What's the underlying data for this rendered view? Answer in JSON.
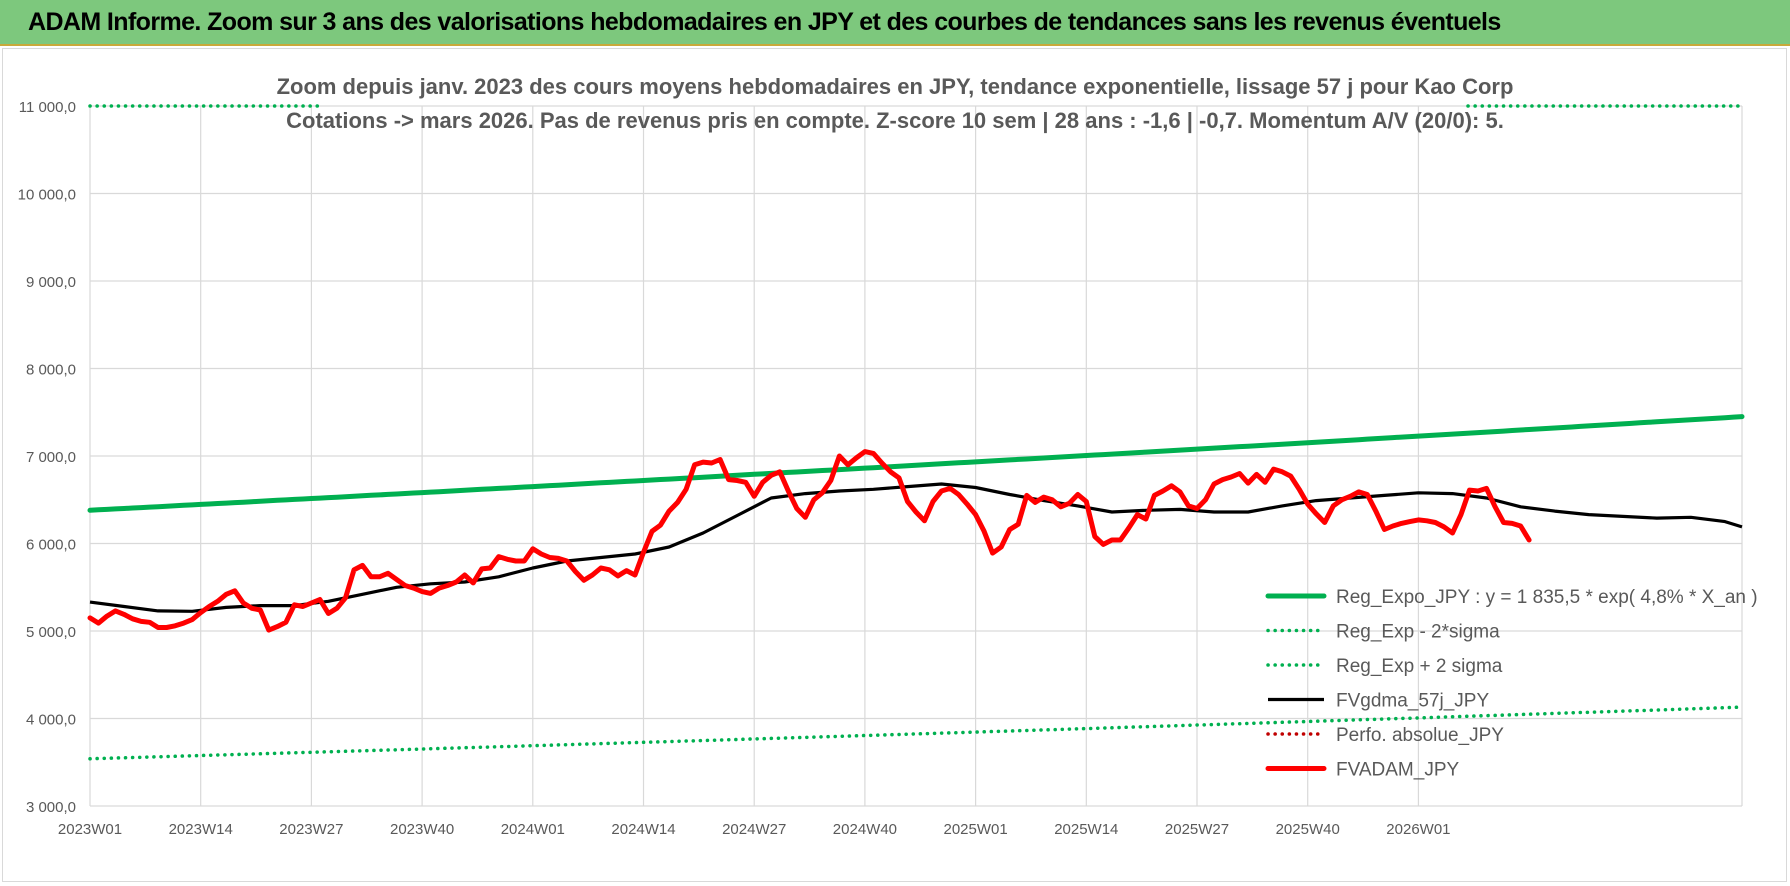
{
  "banner": {
    "title": "ADAM Informe. Zoom sur 3 ans des valorisations hebdomadaires en JPY et des courbes de tendances sans les revenus éventuels"
  },
  "colors": {
    "banner_bg": "#7dc87d",
    "green": "#00b050",
    "red": "#ff0000",
    "black": "#000000",
    "dark_red_dotted": "#c00000",
    "title_text": "#595959",
    "grid": "#d9d9d9"
  },
  "chart_data": {
    "type": "line",
    "title": "Zoom depuis janv. 2023 des cours moyens hebdomadaires en JPY, tendance exponentielle, lissage 57 j pour Kao Corp",
    "subtitle": "Cotations -> mars 2026. Pas de revenus pris en compte. Z-score 10 sem | 28 ans : -1,6 | -0,7. Momentum A/V (20/0): 5.",
    "ylim": [
      3000,
      11000
    ],
    "yticks": [
      "3 000,0",
      "4 000,0",
      "5 000,0",
      "6 000,0",
      "7 000,0",
      "8 000,0",
      "9 000,0",
      "10 000,0",
      "11 000,0"
    ],
    "xticks": [
      "2023W01",
      "2023W14",
      "2023W27",
      "2023W40",
      "2024W01",
      "2024W14",
      "2024W27",
      "2024W40",
      "2025W01",
      "2025W14",
      "2025W27",
      "2025W40",
      "2026W01"
    ],
    "grid": true,
    "legend_position": "bottom-right",
    "series": [
      {
        "name": "Reg_Expo_JPY : y = 1 835,5 * exp( 4,8% *  X_an )",
        "style": "solid-thick",
        "color": "#00b050",
        "start": 6380,
        "end": 7450
      },
      {
        "name": "Reg_Exp - 2*sigma",
        "style": "dotted",
        "color": "#00b050",
        "start": 3540,
        "end": 4130
      },
      {
        "name": "Reg_Exp + 2 sigma",
        "style": "dotted",
        "color": "#00b050",
        "start": 11000,
        "end": 11000
      },
      {
        "name": "FVgdma_57j_JPY",
        "style": "solid",
        "color": "#000000",
        "points": [
          [
            0,
            5330
          ],
          [
            4,
            5280
          ],
          [
            8,
            5230
          ],
          [
            12,
            5225
          ],
          [
            16,
            5270
          ],
          [
            20,
            5290
          ],
          [
            24,
            5290
          ],
          [
            28,
            5340
          ],
          [
            32,
            5420
          ],
          [
            36,
            5500
          ],
          [
            40,
            5540
          ],
          [
            44,
            5560
          ],
          [
            48,
            5620
          ],
          [
            52,
            5720
          ],
          [
            56,
            5800
          ],
          [
            60,
            5840
          ],
          [
            64,
            5880
          ],
          [
            68,
            5960
          ],
          [
            72,
            6120
          ],
          [
            76,
            6320
          ],
          [
            80,
            6520
          ],
          [
            84,
            6570
          ],
          [
            88,
            6600
          ],
          [
            92,
            6620
          ],
          [
            96,
            6650
          ],
          [
            100,
            6680
          ],
          [
            104,
            6640
          ],
          [
            108,
            6560
          ],
          [
            112,
            6490
          ],
          [
            116,
            6430
          ],
          [
            120,
            6360
          ],
          [
            124,
            6380
          ],
          [
            128,
            6390
          ],
          [
            132,
            6360
          ],
          [
            136,
            6360
          ],
          [
            140,
            6430
          ],
          [
            144,
            6490
          ],
          [
            148,
            6520
          ],
          [
            152,
            6550
          ],
          [
            156,
            6580
          ],
          [
            160,
            6570
          ],
          [
            164,
            6520
          ],
          [
            168,
            6420
          ],
          [
            172,
            6370
          ],
          [
            176,
            6330
          ],
          [
            180,
            6310
          ],
          [
            184,
            6290
          ],
          [
            188,
            6300
          ],
          [
            192,
            6250
          ],
          [
            194,
            6190
          ]
        ]
      },
      {
        "name": "Perfo. absolue_JPY",
        "style": "dotted",
        "color": "#c00000",
        "points": []
      },
      {
        "name": "FVADAM_JPY",
        "style": "solid-thick",
        "color": "#ff0000",
        "points": [
          [
            0,
            5150
          ],
          [
            1,
            5090
          ],
          [
            2,
            5170
          ],
          [
            3,
            5230
          ],
          [
            4,
            5190
          ],
          [
            5,
            5140
          ],
          [
            6,
            5110
          ],
          [
            7,
            5100
          ],
          [
            8,
            5040
          ],
          [
            9,
            5040
          ],
          [
            10,
            5060
          ],
          [
            11,
            5090
          ],
          [
            12,
            5130
          ],
          [
            13,
            5210
          ],
          [
            14,
            5280
          ],
          [
            15,
            5340
          ],
          [
            16,
            5420
          ],
          [
            17,
            5460
          ],
          [
            18,
            5320
          ],
          [
            19,
            5260
          ],
          [
            20,
            5240
          ],
          [
            21,
            5010
          ],
          [
            22,
            5050
          ],
          [
            23,
            5100
          ],
          [
            24,
            5300
          ],
          [
            25,
            5280
          ],
          [
            26,
            5320
          ],
          [
            27,
            5360
          ],
          [
            28,
            5200
          ],
          [
            29,
            5260
          ],
          [
            30,
            5380
          ],
          [
            31,
            5700
          ],
          [
            32,
            5750
          ],
          [
            33,
            5620
          ],
          [
            34,
            5620
          ],
          [
            35,
            5660
          ],
          [
            36,
            5590
          ],
          [
            37,
            5520
          ],
          [
            38,
            5490
          ],
          [
            39,
            5450
          ],
          [
            40,
            5430
          ],
          [
            41,
            5490
          ],
          [
            42,
            5520
          ],
          [
            43,
            5560
          ],
          [
            44,
            5640
          ],
          [
            45,
            5550
          ],
          [
            46,
            5710
          ],
          [
            47,
            5720
          ],
          [
            48,
            5850
          ],
          [
            49,
            5820
          ],
          [
            50,
            5800
          ],
          [
            51,
            5800
          ],
          [
            52,
            5940
          ],
          [
            53,
            5880
          ],
          [
            54,
            5840
          ],
          [
            55,
            5830
          ],
          [
            56,
            5800
          ],
          [
            57,
            5680
          ],
          [
            58,
            5580
          ],
          [
            59,
            5640
          ],
          [
            60,
            5720
          ],
          [
            61,
            5700
          ],
          [
            62,
            5630
          ],
          [
            63,
            5690
          ],
          [
            64,
            5640
          ],
          [
            65,
            5900
          ],
          [
            66,
            6140
          ],
          [
            67,
            6210
          ],
          [
            68,
            6370
          ],
          [
            69,
            6470
          ],
          [
            70,
            6620
          ],
          [
            71,
            6900
          ],
          [
            72,
            6930
          ],
          [
            73,
            6920
          ],
          [
            74,
            6960
          ],
          [
            75,
            6730
          ],
          [
            76,
            6720
          ],
          [
            77,
            6700
          ],
          [
            78,
            6540
          ],
          [
            79,
            6700
          ],
          [
            80,
            6780
          ],
          [
            81,
            6820
          ],
          [
            82,
            6600
          ],
          [
            83,
            6400
          ],
          [
            84,
            6300
          ],
          [
            85,
            6500
          ],
          [
            86,
            6580
          ],
          [
            87,
            6720
          ],
          [
            88,
            7000
          ],
          [
            89,
            6900
          ],
          [
            90,
            6980
          ],
          [
            91,
            7050
          ],
          [
            92,
            7030
          ],
          [
            93,
            6920
          ],
          [
            94,
            6820
          ],
          [
            95,
            6750
          ],
          [
            96,
            6480
          ],
          [
            97,
            6360
          ],
          [
            98,
            6260
          ],
          [
            99,
            6480
          ],
          [
            100,
            6600
          ],
          [
            101,
            6630
          ],
          [
            102,
            6560
          ],
          [
            103,
            6450
          ],
          [
            104,
            6330
          ],
          [
            105,
            6140
          ],
          [
            106,
            5890
          ],
          [
            107,
            5960
          ],
          [
            108,
            6160
          ],
          [
            109,
            6220
          ],
          [
            110,
            6550
          ],
          [
            111,
            6470
          ],
          [
            112,
            6530
          ],
          [
            113,
            6500
          ],
          [
            114,
            6420
          ],
          [
            115,
            6460
          ],
          [
            116,
            6560
          ],
          [
            117,
            6480
          ],
          [
            118,
            6080
          ],
          [
            119,
            5990
          ],
          [
            120,
            6040
          ],
          [
            121,
            6040
          ],
          [
            122,
            6180
          ],
          [
            123,
            6330
          ],
          [
            124,
            6280
          ],
          [
            125,
            6550
          ],
          [
            126,
            6600
          ],
          [
            127,
            6660
          ],
          [
            128,
            6590
          ],
          [
            129,
            6430
          ],
          [
            130,
            6400
          ],
          [
            131,
            6500
          ],
          [
            132,
            6680
          ],
          [
            133,
            6730
          ],
          [
            134,
            6760
          ],
          [
            135,
            6800
          ],
          [
            136,
            6690
          ],
          [
            137,
            6790
          ],
          [
            138,
            6700
          ],
          [
            139,
            6850
          ],
          [
            140,
            6820
          ],
          [
            141,
            6770
          ],
          [
            142,
            6620
          ],
          [
            143,
            6450
          ],
          [
            144,
            6340
          ],
          [
            145,
            6240
          ],
          [
            146,
            6430
          ],
          [
            147,
            6500
          ],
          [
            148,
            6540
          ],
          [
            149,
            6590
          ],
          [
            150,
            6560
          ],
          [
            151,
            6370
          ],
          [
            152,
            6160
          ],
          [
            153,
            6200
          ],
          [
            154,
            6230
          ],
          [
            155,
            6250
          ],
          [
            156,
            6270
          ],
          [
            157,
            6260
          ],
          [
            158,
            6240
          ],
          [
            159,
            6190
          ],
          [
            160,
            6120
          ],
          [
            161,
            6330
          ],
          [
            162,
            6610
          ],
          [
            163,
            6600
          ],
          [
            164,
            6630
          ],
          [
            165,
            6420
          ],
          [
            166,
            6240
          ],
          [
            167,
            6230
          ],
          [
            168,
            6200
          ],
          [
            169,
            6040
          ]
        ]
      }
    ]
  }
}
